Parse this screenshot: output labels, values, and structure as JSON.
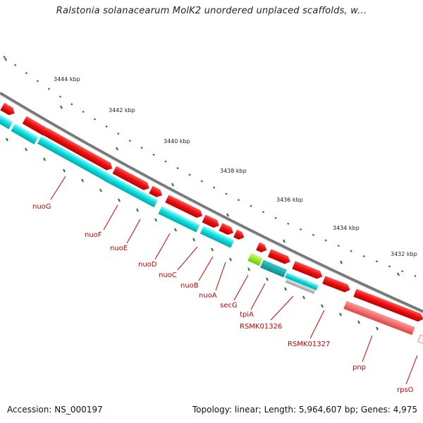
{
  "title": "Ralstonia solanacearum MolK2 unordered unplaced scaffolds, w...",
  "footer": {
    "accession": "Accession: NS_000197",
    "summary": "Topology: linear; Length: 5,964,607 bp; Genes: 4,975"
  },
  "ticks": [
    "3444 kbp",
    "3442 kbp",
    "3440 kbp",
    "3438 kbp",
    "3436 kbp",
    "3434 kbp",
    "3432 kbp"
  ],
  "genes": [
    "nuoG",
    "nuoF",
    "nuoE",
    "nuoD",
    "nuoC",
    "nuoB",
    "nuoA",
    "secG",
    "tpiA",
    "RSMK01326",
    "RSMK01327",
    "pnp",
    "rpsO"
  ],
  "colors": {
    "cds": "#ee1111",
    "gene": "#11dddd",
    "rna": "#88ee22",
    "pseudo": "#aaaaaa",
    "partial": "#ee6666",
    "backbone": "#777777",
    "tick": "#2a7a2a",
    "label": "#cc0000"
  }
}
